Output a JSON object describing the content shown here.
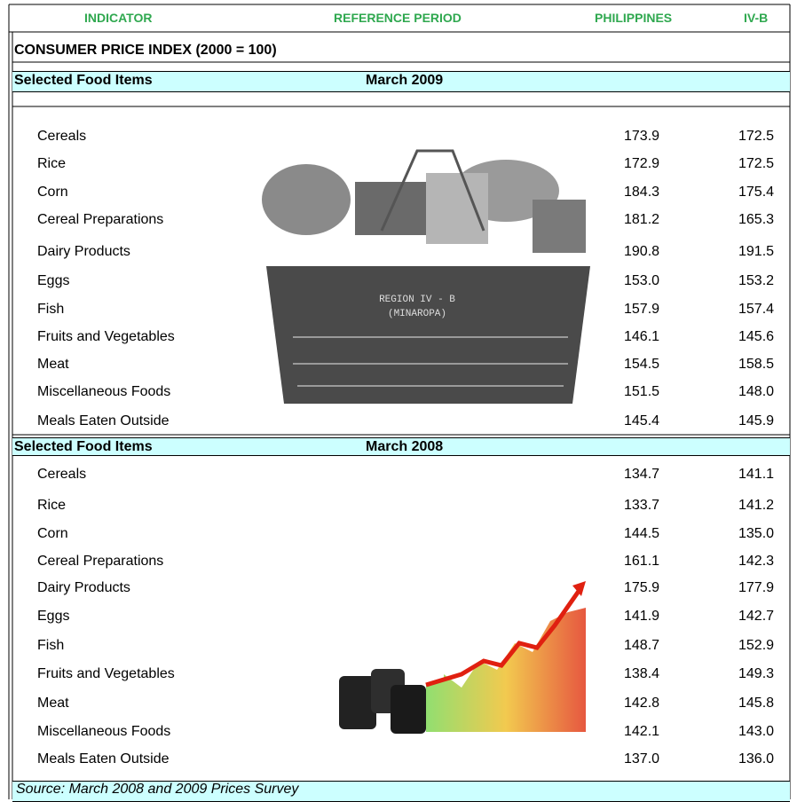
{
  "header": {
    "columns": [
      "INDICATOR",
      "REFERENCE PERIOD",
      "PHILIPPINES",
      "IV-B"
    ]
  },
  "title": "CONSUMER PRICE INDEX (2000 = 100)",
  "sections": [
    {
      "label": "Selected Food Items",
      "period": "March 2009",
      "rows": [
        [
          "Cereals",
          "173.9",
          "172.5"
        ],
        [
          "Rice",
          "172.9",
          "172.5"
        ],
        [
          "Corn",
          "184.3",
          "175.4"
        ],
        [
          "Cereal Preparations",
          "181.2",
          "165.3"
        ],
        [
          "Dairy Products",
          "190.8",
          "191.5"
        ],
        [
          "Eggs",
          "153.0",
          "153.2"
        ],
        [
          "Fish",
          "157.9",
          "157.4"
        ],
        [
          "Fruits and Vegetables",
          "146.1",
          "145.6"
        ],
        [
          "Meat",
          "154.5",
          "158.5"
        ],
        [
          "Miscellaneous Foods",
          "151.5",
          "148.0"
        ],
        [
          "Meals Eaten Outside",
          "145.4",
          "145.9"
        ]
      ]
    },
    {
      "label": "Selected Food Items",
      "period": "March 2008",
      "rows": [
        [
          "Cereals",
          "134.7",
          "141.1"
        ],
        [
          "Rice",
          "133.7",
          "141.2"
        ],
        [
          "Corn",
          "144.5",
          "135.0"
        ],
        [
          "Cereal Preparations",
          "161.1",
          "142.3"
        ],
        [
          "Dairy Products",
          "175.9",
          "177.9"
        ],
        [
          "Eggs",
          "141.9",
          "142.7"
        ],
        [
          "Fish",
          "148.7",
          "152.9"
        ],
        [
          "Fruits and Vegetables",
          "138.4",
          "149.3"
        ],
        [
          "Meat",
          "142.8",
          "145.8"
        ],
        [
          "Miscellaneous Foods",
          "142.1",
          "143.0"
        ],
        [
          "Meals Eaten Outside",
          "137.0",
          "136.0"
        ]
      ]
    }
  ],
  "basket_text": [
    "REGION IV - B",
    "(MINAROPA)"
  ],
  "source": "Source: March 2008 and 2009 Prices Survey"
}
